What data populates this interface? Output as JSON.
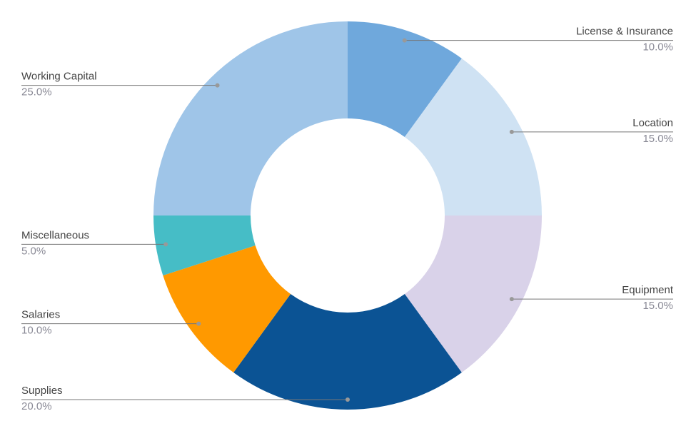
{
  "chart_data": {
    "type": "donut",
    "categories": [
      "License & Insurance",
      "Location",
      "Equipment",
      "Supplies",
      "Salaries",
      "Miscellaneous",
      "Working Capital"
    ],
    "values": [
      10,
      15,
      15,
      20,
      10,
      5,
      25
    ],
    "value_labels": [
      "10.0%",
      "15.0%",
      "15.0%",
      "20.0%",
      "10.0%",
      "5.0%",
      "25.0%"
    ],
    "colors": [
      "#6fa8dc",
      "#cfe2f3",
      "#d9d2e9",
      "#0b5394",
      "#ff9900",
      "#46bdc6",
      "#9fc5e8"
    ]
  }
}
